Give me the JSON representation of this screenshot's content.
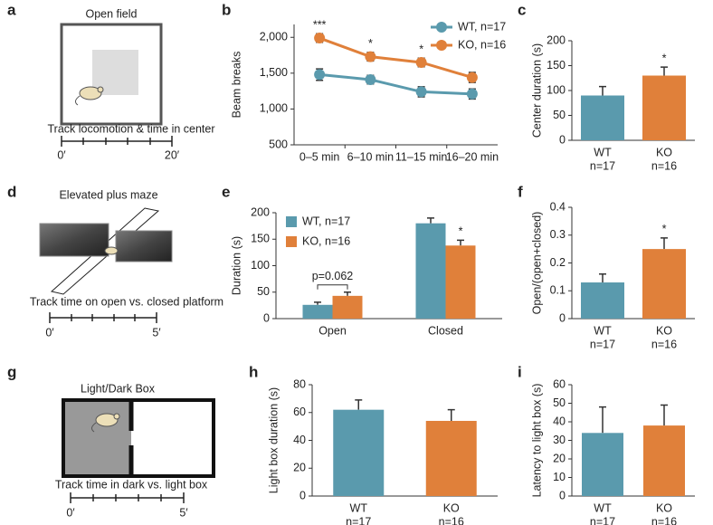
{
  "diagrams": [
    {
      "panel": "a",
      "title": "Open field",
      "caption": "Track locomotion & time in center",
      "timeline": [
        "0′",
        "20′"
      ]
    },
    {
      "panel": "d",
      "title": "Elevated plus maze",
      "caption": "Track time on open vs. closed platform",
      "timeline": [
        "0′",
        "5′"
      ]
    },
    {
      "panel": "g",
      "title": "Light/Dark Box",
      "caption": "Track time in dark vs. light box",
      "timeline": [
        "0′",
        "5′"
      ]
    }
  ],
  "chart_data": [
    {
      "type": "line",
      "panel": "b",
      "y_label": "Beam breaks",
      "categories": [
        "0–5 min",
        "6–10 min",
        "11–15 min",
        "16–20 min"
      ],
      "series": [
        {
          "name": "WT, n=17",
          "color": "#5a9aad",
          "values": [
            1480,
            1410,
            1240,
            1210
          ],
          "errors": [
            80,
            60,
            70,
            70
          ]
        },
        {
          "name": "KO, n=16",
          "color": "#e0803a",
          "values": [
            1990,
            1730,
            1650,
            1440
          ],
          "errors": [
            60,
            60,
            60,
            70
          ]
        }
      ],
      "annotations": [
        "***",
        "*",
        "*",
        null
      ],
      "ylim": [
        500,
        2180
      ],
      "yticks": [
        500,
        {
          "value": 1000,
          "label": "1,000"
        },
        {
          "value": 1500,
          "label": "1,500"
        },
        {
          "value": 2000,
          "label": "2,000"
        }
      ]
    },
    {
      "type": "bar",
      "panel": "c",
      "y_label": "Center duration (s)",
      "categories": [
        "WT",
        "KO"
      ],
      "subcategories": [
        "n=17",
        "n=16"
      ],
      "values": [
        90,
        130
      ],
      "errors": [
        18,
        17
      ],
      "colors": [
        "#5a9aad",
        "#e0803a"
      ],
      "annotations": [
        null,
        "*"
      ],
      "ylim": [
        0,
        200
      ],
      "yticks": [
        0,
        50,
        100,
        150,
        200
      ]
    },
    {
      "type": "grouped",
      "panel": "e",
      "y_label": "Duration (s)",
      "categories": [
        "Open",
        "Closed"
      ],
      "series": [
        {
          "name": "WT, n=17",
          "color": "#5a9aad",
          "values": [
            26,
            180
          ],
          "errors": [
            5,
            10
          ]
        },
        {
          "name": "KO, n=16",
          "color": "#e0803a",
          "values": [
            43,
            138
          ],
          "errors": [
            7,
            10
          ]
        }
      ],
      "annotations": [
        {
          "text": "p=0.062",
          "bracket": true
        },
        {
          "text": "*",
          "bracket": false
        }
      ],
      "ylim": [
        0,
        200
      ],
      "yticks": [
        0,
        50,
        100,
        150,
        200
      ]
    },
    {
      "type": "bar",
      "panel": "f",
      "y_label": "Open/(open+closed)",
      "categories": [
        "WT",
        "KO"
      ],
      "subcategories": [
        "n=17",
        "n=16"
      ],
      "values": [
        0.13,
        0.25
      ],
      "errors": [
        0.03,
        0.04
      ],
      "colors": [
        "#5a9aad",
        "#e0803a"
      ],
      "annotations": [
        null,
        "*"
      ],
      "ylim": [
        0,
        0.4
      ],
      "yticks": [
        0,
        0.1,
        0.2,
        0.3,
        0.4
      ]
    },
    {
      "type": "bar",
      "panel": "h",
      "y_label": "Light box duration (s)",
      "categories": [
        "WT",
        "KO"
      ],
      "subcategories": [
        "n=17",
        "n=16"
      ],
      "values": [
        62,
        54
      ],
      "errors": [
        7,
        8
      ],
      "colors": [
        "#5a9aad",
        "#e0803a"
      ],
      "annotations": [
        null,
        null
      ],
      "ylim": [
        0,
        80
      ],
      "yticks": [
        0,
        20,
        40,
        60,
        80
      ]
    },
    {
      "type": "bar",
      "panel": "i",
      "y_label": "Latency to light box (s)",
      "categories": [
        "WT",
        "KO"
      ],
      "subcategories": [
        "n=17",
        "n=16"
      ],
      "values": [
        34,
        38
      ],
      "errors": [
        14,
        11
      ],
      "colors": [
        "#5a9aad",
        "#e0803a"
      ],
      "annotations": [
        null,
        null
      ],
      "ylim": [
        0,
        60
      ],
      "yticks": [
        0,
        10,
        20,
        30,
        40,
        50,
        60
      ]
    }
  ]
}
